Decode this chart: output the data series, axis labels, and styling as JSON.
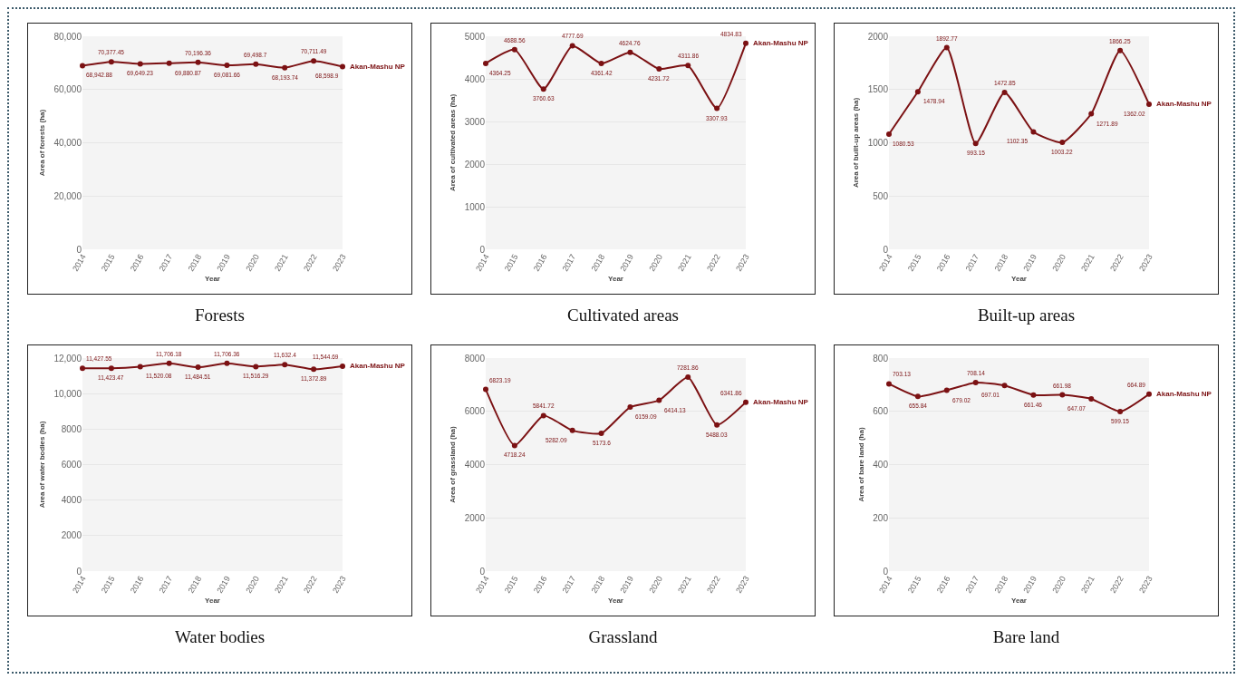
{
  "chart_data": [
    {
      "type": "line",
      "title": "Forests",
      "xlabel": "Year",
      "ylabel": "Area of forests (ha)",
      "categories": [
        "2014",
        "2015",
        "2016",
        "2017",
        "2018",
        "2019",
        "2020",
        "2021",
        "2022",
        "2023"
      ],
      "series": [
        {
          "name": "Akan-Mashu NP",
          "color": "#7b1113",
          "values": [
            68942.88,
            70377.45,
            69649.23,
            69880.87,
            70196.36,
            69081.66,
            69498.7,
            68193.74,
            70711.49,
            68598.9
          ],
          "value_labels": [
            "68,942.88",
            "70,377.45",
            "69,649.23",
            "69,880.87",
            "70,196.36",
            "69,081.66",
            "69,498.7",
            "68,193.74",
            "70,711.49",
            "68,598.9"
          ]
        }
      ],
      "ylim": [
        0,
        80000
      ],
      "yticks": [
        0,
        {
          "value": 20000,
          "label": "20,000"
        },
        {
          "value": 40000,
          "label": "40,000"
        },
        {
          "value": 60000,
          "label": "60,000"
        },
        {
          "value": 80000,
          "label": "80,000"
        }
      ],
      "grid": "y",
      "marker": "circle",
      "line_style": "solid"
    },
    {
      "type": "line",
      "title": "Cultivated areas",
      "xlabel": "Year",
      "ylabel": "Area of cultivated areas (ha)",
      "categories": [
        "2014",
        "2015",
        "2016",
        "2017",
        "2018",
        "2019",
        "2020",
        "2021",
        "2022",
        "2023"
      ],
      "series": [
        {
          "name": "Akan-Mashu NP",
          "color": "#7b1113",
          "values": [
            4364.25,
            4688.56,
            3760.63,
            4777.69,
            4361.42,
            4624.76,
            4231.72,
            4311.86,
            3307.93,
            4834.83
          ],
          "value_labels": [
            "4364.25",
            "4688.56",
            "3760.63",
            "4777.69",
            "4361.42",
            "4624.76",
            "4231.72",
            "4311.86",
            "3307.93",
            "4834.83"
          ]
        }
      ],
      "ylim": [
        0,
        5000
      ],
      "yticks": [
        0,
        1000,
        2000,
        3000,
        4000,
        5000
      ],
      "grid": "y",
      "marker": "circle",
      "line_style": "solid"
    },
    {
      "type": "line",
      "title": "Built-up areas",
      "xlabel": "Year",
      "ylabel": "Area of built-up areas (ha)",
      "categories": [
        "2014",
        "2015",
        "2016",
        "2017",
        "2018",
        "2019",
        "2020",
        "2021",
        "2022",
        "2023"
      ],
      "series": [
        {
          "name": "Akan-Mashu NP",
          "color": "#7b1113",
          "values": [
            1080.53,
            1478.94,
            1892.77,
            993.15,
            1472.85,
            1102.35,
            1003.22,
            1271.89,
            1866.25,
            1362.02
          ],
          "value_labels": [
            "1080.53",
            "1478.94",
            "1892.77",
            "993.15",
            "1472.85",
            "1102.35",
            "1003.22",
            "1271.89",
            "1866.25",
            "1362.02"
          ]
        }
      ],
      "ylim": [
        0,
        2000
      ],
      "yticks": [
        0,
        500,
        1000,
        1500,
        2000
      ],
      "grid": "y",
      "marker": "circle",
      "line_style": "solid"
    },
    {
      "type": "line",
      "title": "Water bodies",
      "xlabel": "Year",
      "ylabel": "Area of water bodies (ha)",
      "categories": [
        "2014",
        "2015",
        "2016",
        "2017",
        "2018",
        "2019",
        "2020",
        "2021",
        "2022",
        "2023"
      ],
      "series": [
        {
          "name": "Akan-Mashu NP",
          "color": "#7b1113",
          "values": [
            11427.55,
            11423.47,
            11520.08,
            11706.18,
            11484.51,
            11706.36,
            11516.29,
            11632.4,
            11372.89,
            11544.69
          ],
          "value_labels": [
            "11,427.55",
            "11,423.47",
            "11,520.08",
            "11,706.18",
            "11,484.51",
            "11,706.36",
            "11,516.29",
            "11,632.4",
            "11,372.89",
            "11,544.69"
          ]
        }
      ],
      "ylim": [
        0,
        12000
      ],
      "yticks": [
        0,
        2000,
        4000,
        6000,
        8000,
        {
          "value": 10000,
          "label": "10,000"
        },
        {
          "value": 12000,
          "label": "12,000"
        }
      ],
      "grid": "y",
      "marker": "circle",
      "line_style": "solid"
    },
    {
      "type": "line",
      "title": "Grassland",
      "xlabel": "Year",
      "ylabel": "Area of grassland (ha)",
      "categories": [
        "2014",
        "2015",
        "2016",
        "2017",
        "2018",
        "2019",
        "2020",
        "2021",
        "2022",
        "2023"
      ],
      "series": [
        {
          "name": "Akan-Mashu NP",
          "color": "#7b1113",
          "values": [
            6823.19,
            4718.24,
            5841.72,
            5282.09,
            5173.6,
            6159.09,
            6414.13,
            7281.86,
            5488.03,
            6341.86
          ],
          "value_labels": [
            "6823.19",
            "4718.24",
            "5841.72",
            "5282.09",
            "5173.6",
            "6159.09",
            "6414.13",
            "7281.86",
            "5488.03",
            "6341.86"
          ]
        }
      ],
      "ylim": [
        0,
        8000
      ],
      "yticks": [
        0,
        2000,
        4000,
        6000,
        8000
      ],
      "grid": "y",
      "marker": "circle",
      "line_style": "solid"
    },
    {
      "type": "line",
      "title": "Bare land",
      "xlabel": "Year",
      "ylabel": "Area of bare land (ha)",
      "categories": [
        "2014",
        "2015",
        "2016",
        "2017",
        "2018",
        "2019",
        "2020",
        "2021",
        "2022",
        "2023"
      ],
      "series": [
        {
          "name": "Akan-Mashu NP",
          "color": "#7b1113",
          "values": [
            703.13,
            655.84,
            679.02,
            708.14,
            697.01,
            661.46,
            661.98,
            647.07,
            599.15,
            664.89
          ],
          "value_labels": [
            "703.13",
            "655.84",
            "679.02",
            "708.14",
            "697.01",
            "661.46",
            "661.98",
            "647.07",
            "599.15",
            "664.89"
          ]
        }
      ],
      "ylim": [
        0,
        800
      ],
      "yticks": [
        0,
        200,
        400,
        600,
        800
      ],
      "grid": "y",
      "marker": "circle",
      "line_style": "solid"
    }
  ]
}
